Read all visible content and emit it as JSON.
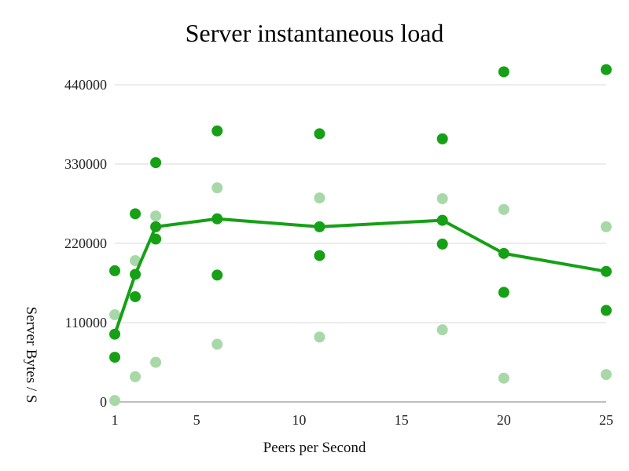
{
  "colors": {
    "dark_point": "#16a016",
    "light_point": "#a8d8a8",
    "line": "#16a016",
    "grid": "#d9d9d9",
    "axis": "#999999"
  },
  "chart_data": {
    "type": "scatter",
    "title": "Server instantaneous load",
    "xlabel": "Peers per Second",
    "ylabel": "Server Bytes / S",
    "xlim": [
      1,
      25
    ],
    "ylim": [
      0,
      440000
    ],
    "x_ticks": [
      "1",
      "5",
      "10",
      "15",
      "20",
      "25"
    ],
    "y_ticks": [
      "0",
      "110000",
      "220000",
      "330000",
      "440000"
    ],
    "grid": true,
    "legend": "none",
    "series": [
      {
        "role": "line",
        "points": [
          {
            "x": 1,
            "y": 94000
          },
          {
            "x": 2,
            "y": 177000
          },
          {
            "x": 3,
            "y": 243000
          },
          {
            "x": 6,
            "y": 254000
          },
          {
            "x": 11,
            "y": 243000
          },
          {
            "x": 17,
            "y": 252000
          },
          {
            "x": 20,
            "y": 206000
          },
          {
            "x": 25,
            "y": 181000
          }
        ]
      },
      {
        "role": "dark",
        "points": [
          {
            "x": 1,
            "y": 182000
          },
          {
            "x": 1,
            "y": 62000
          },
          {
            "x": 2,
            "y": 261000
          },
          {
            "x": 2,
            "y": 146000
          },
          {
            "x": 3,
            "y": 332000
          },
          {
            "x": 3,
            "y": 226000
          },
          {
            "x": 6,
            "y": 376000
          },
          {
            "x": 6,
            "y": 176000
          },
          {
            "x": 11,
            "y": 372000
          },
          {
            "x": 11,
            "y": 203000
          },
          {
            "x": 17,
            "y": 365000
          },
          {
            "x": 17,
            "y": 219000
          },
          {
            "x": 20,
            "y": 458000
          },
          {
            "x": 20,
            "y": 152000
          },
          {
            "x": 25,
            "y": 461000
          },
          {
            "x": 25,
            "y": 127000
          }
        ]
      },
      {
        "role": "light",
        "points": [
          {
            "x": 1,
            "y": 121000
          },
          {
            "x": 1,
            "y": 2000
          },
          {
            "x": 2,
            "y": 196000
          },
          {
            "x": 2,
            "y": 35000
          },
          {
            "x": 3,
            "y": 258000
          },
          {
            "x": 3,
            "y": 55000
          },
          {
            "x": 6,
            "y": 297000
          },
          {
            "x": 6,
            "y": 80000
          },
          {
            "x": 11,
            "y": 283000
          },
          {
            "x": 11,
            "y": 90000
          },
          {
            "x": 17,
            "y": 282000
          },
          {
            "x": 17,
            "y": 100000
          },
          {
            "x": 20,
            "y": 267000
          },
          {
            "x": 20,
            "y": 33000
          },
          {
            "x": 25,
            "y": 243000
          },
          {
            "x": 25,
            "y": 38000
          }
        ]
      }
    ]
  }
}
